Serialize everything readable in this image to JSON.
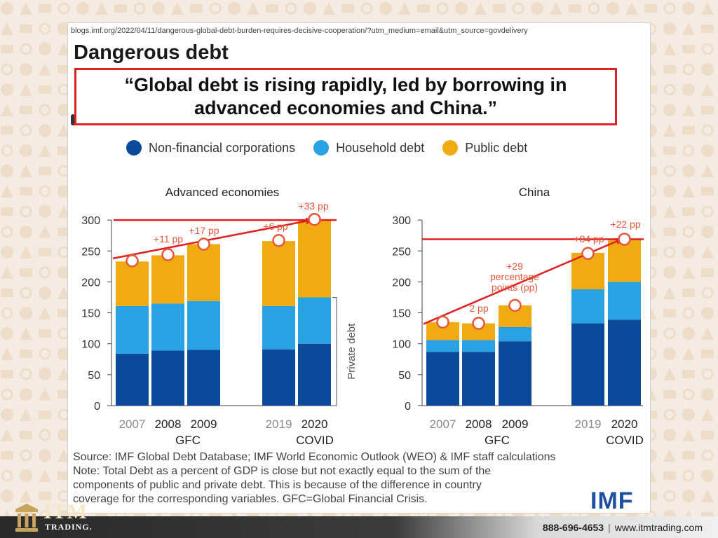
{
  "page": {
    "url": "blogs.imf.org/2022/04/11/dangerous-global-debt-burden-requires-decisive-cooperation/?utm_medium=email&utm_source=govdelivery",
    "title": "Dangerous debt",
    "quote": "“Global debt is rising rapidly, led by borrowing in advanced economies and China.”",
    "source_lines": [
      "Source: IMF Global Debt Database; IMF World Economic Outlook (WEO) & IMF staff calculations",
      "Note: Total Debt as a percent of GDP is close but not exactly equal to the sum of the",
      "components of public and private debt. This is because of the difference in country",
      "coverage for the corresponding variables. GFC=Global Financial Crisis."
    ],
    "imf_logo": "IMF"
  },
  "footer": {
    "brand": "ITM",
    "brand_sub": "TRADING.",
    "phone": "888-696-4653",
    "separator": "|",
    "website": "www.itmtrading.com"
  },
  "colors": {
    "corporations": "#0b4a9a",
    "household": "#29a2e3",
    "public": "#f0aa12",
    "highlight": "#e02020",
    "axis_text": "#333333",
    "year_grey": "#8a8a8a"
  },
  "legend": [
    {
      "label": "Non-financial corporations",
      "color": "#0b4a9a"
    },
    {
      "label": "Household debt",
      "color": "#29a2e3"
    },
    {
      "label": "Public debt",
      "color": "#f0aa12"
    }
  ],
  "chart_data": [
    {
      "type": "bar",
      "stacked": true,
      "title": "Advanced economies",
      "categories": [
        "2007",
        "2008",
        "2009",
        "2019",
        "2020"
      ],
      "category_groups": [
        {
          "label": "GFC",
          "years": [
            "2008",
            "2009"
          ]
        },
        {
          "label": "COVID",
          "years": [
            "2020"
          ]
        }
      ],
      "series": [
        {
          "name": "Non-financial corporations",
          "values": [
            84,
            89,
            90,
            91,
            100
          ]
        },
        {
          "name": "Household debt",
          "values": [
            77,
            76,
            79,
            70,
            75
          ]
        },
        {
          "name": "Public debt",
          "values": [
            72,
            78,
            92,
            105,
            125
          ]
        }
      ],
      "totals": [
        234,
        244,
        261,
        267,
        301
      ],
      "annotations": [
        "+11 pp",
        "+17 pp",
        "+6 pp",
        "+33 pp"
      ],
      "side_label": "Private debt",
      "ylim": [
        0,
        300
      ],
      "yticks": [
        0,
        50,
        100,
        150,
        200,
        250,
        300
      ],
      "reference_line": 300,
      "trend_arrow": {
        "from": [
          0,
          238
        ],
        "to": [
          4,
          300
        ]
      },
      "grid": false
    },
    {
      "type": "bar",
      "stacked": true,
      "title": "China",
      "categories": [
        "2007",
        "2008",
        "2009",
        "2019",
        "2020"
      ],
      "category_groups": [
        {
          "label": "GFC",
          "years": [
            "2008",
            "2009"
          ]
        },
        {
          "label": "COVID",
          "years": [
            "2020"
          ]
        }
      ],
      "series": [
        {
          "name": "Non-financial corporations",
          "values": [
            87,
            87,
            104,
            133,
            139
          ]
        },
        {
          "name": "Household debt",
          "values": [
            19,
            19,
            23,
            55,
            61
          ]
        },
        {
          "name": "Public debt",
          "values": [
            29,
            27,
            35,
            59,
            69
          ]
        }
      ],
      "totals": [
        135,
        133,
        162,
        246,
        269
      ],
      "annotations": [
        "2 pp",
        "+29",
        "percentage",
        "points (pp)",
        "+84 pp",
        "+22 pp"
      ],
      "ylim": [
        0,
        300
      ],
      "yticks": [
        0,
        50,
        100,
        150,
        200,
        250,
        300
      ],
      "reference_line": 269,
      "trend_arrow": {
        "from": [
          0,
          132
        ],
        "to": [
          4,
          269
        ]
      },
      "grid": false
    }
  ]
}
